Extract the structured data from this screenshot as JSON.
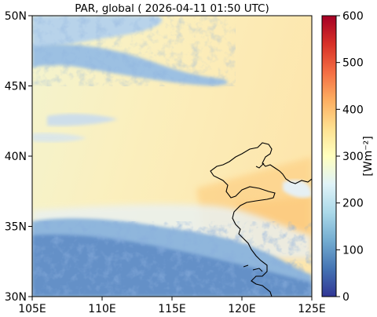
{
  "figure": {
    "title": "PAR, global ( 2026-04-11 01:50 UTC)"
  },
  "map": {
    "lon_range": [
      105,
      125
    ],
    "lat_range": [
      30,
      50
    ],
    "x_ticks": [
      {
        "value": 105,
        "label": "105E"
      },
      {
        "value": 110,
        "label": "110E"
      },
      {
        "value": 115,
        "label": "115E"
      },
      {
        "value": 120,
        "label": "120E"
      },
      {
        "value": 125,
        "label": "125E"
      }
    ],
    "y_ticks": [
      {
        "value": 30,
        "label": "30N"
      },
      {
        "value": 35,
        "label": "35N"
      },
      {
        "value": 40,
        "label": "40N"
      },
      {
        "value": 45,
        "label": "45N"
      },
      {
        "value": 50,
        "label": "50N"
      }
    ],
    "coastline_color": "#000000"
  },
  "colorbar": {
    "label": "[Wm⁻²]",
    "range": [
      0,
      600
    ],
    "ticks": [
      {
        "value": 0,
        "label": "0"
      },
      {
        "value": 100,
        "label": "100"
      },
      {
        "value": 200,
        "label": "200"
      },
      {
        "value": 300,
        "label": "300"
      },
      {
        "value": 400,
        "label": "400"
      },
      {
        "value": 500,
        "label": "500"
      },
      {
        "value": 600,
        "label": "600"
      }
    ],
    "colormap": [
      "#313695",
      "#4575b4",
      "#74add1",
      "#abd9e9",
      "#e0f3f8",
      "#ffffbf",
      "#fee090",
      "#fdae61",
      "#f46d43",
      "#d73027",
      "#a50026"
    ]
  }
}
